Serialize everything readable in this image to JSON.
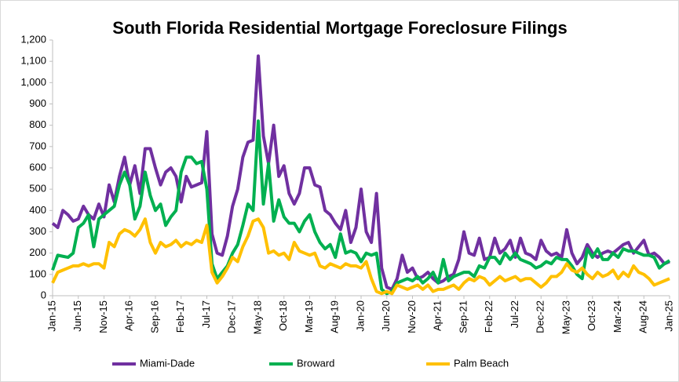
{
  "chart_data": {
    "type": "line",
    "title": "South Florida Residential Mortgage Foreclosure Filings",
    "categories": [
      "Jan-15",
      null,
      null,
      null,
      null,
      "Jun-15",
      null,
      null,
      null,
      null,
      "Nov-15",
      null,
      null,
      null,
      null,
      "Apr-16",
      null,
      null,
      null,
      null,
      "Sep-16",
      null,
      null,
      null,
      null,
      "Feb-17",
      null,
      null,
      null,
      null,
      "Jul-17",
      null,
      null,
      null,
      null,
      "Dec-17",
      null,
      null,
      null,
      null,
      "May-18",
      null,
      null,
      null,
      null,
      "Oct-18",
      null,
      null,
      null,
      null,
      "Mar-19",
      null,
      null,
      null,
      null,
      "Aug-19",
      null,
      null,
      null,
      null,
      "Jan-20",
      null,
      null,
      null,
      null,
      "Jun-20",
      null,
      null,
      null,
      null,
      "Nov-20",
      null,
      null,
      null,
      null,
      "Apr-21",
      null,
      null,
      null,
      null,
      "Sep-21",
      null,
      null,
      null,
      null,
      "Feb-22",
      null,
      null,
      null,
      null,
      "Jul-22",
      null,
      null,
      null,
      null,
      "Dec-22",
      null,
      null,
      null,
      null,
      "May-23",
      null,
      null,
      null,
      null,
      "Oct-23",
      null,
      null,
      null,
      null,
      "Mar-24",
      null,
      null,
      null,
      null,
      "Aug-24",
      null,
      null,
      null,
      null,
      "Jan-25"
    ],
    "series": [
      {
        "name": "Miami-Dade",
        "color": "#7030a0",
        "values": [
          340,
          320,
          400,
          380,
          350,
          360,
          420,
          380,
          360,
          430,
          370,
          520,
          440,
          560,
          650,
          520,
          610,
          480,
          690,
          690,
          600,
          520,
          580,
          600,
          560,
          440,
          560,
          510,
          520,
          530,
          770,
          290,
          200,
          190,
          280,
          420,
          500,
          650,
          720,
          730,
          1125,
          750,
          620,
          800,
          560,
          610,
          480,
          430,
          480,
          600,
          600,
          520,
          510,
          400,
          380,
          340,
          310,
          400,
          250,
          320,
          500,
          300,
          250,
          480,
          130,
          40,
          30,
          80,
          190,
          110,
          130,
          80,
          90,
          110,
          80,
          60,
          70,
          90,
          100,
          170,
          300,
          200,
          190,
          270,
          170,
          180,
          270,
          200,
          220,
          260,
          180,
          270,
          200,
          190,
          170,
          260,
          210,
          190,
          200,
          180,
          310,
          200,
          150,
          180,
          240,
          200,
          180,
          200,
          210,
          200,
          220,
          240,
          250,
          200,
          230,
          260,
          190,
          200,
          180,
          150,
          160
        ]
      },
      {
        "name": "Broward",
        "color": "#00b050",
        "values": [
          120,
          190,
          185,
          180,
          200,
          320,
          340,
          380,
          230,
          360,
          380,
          400,
          420,
          520,
          580,
          520,
          360,
          420,
          580,
          470,
          400,
          430,
          330,
          370,
          400,
          580,
          650,
          650,
          620,
          630,
          500,
          150,
          80,
          110,
          140,
          200,
          240,
          330,
          430,
          400,
          820,
          430,
          620,
          350,
          450,
          370,
          340,
          340,
          300,
          350,
          380,
          300,
          250,
          220,
          240,
          180,
          290,
          200,
          210,
          200,
          160,
          200,
          190,
          200,
          30,
          10,
          20,
          60,
          70,
          80,
          70,
          90,
          60,
          80,
          110,
          60,
          170,
          70,
          90,
          100,
          110,
          110,
          90,
          140,
          130,
          180,
          180,
          150,
          200,
          170,
          200,
          170,
          160,
          150,
          130,
          140,
          160,
          150,
          180,
          170,
          170,
          140,
          100,
          80,
          220,
          180,
          220,
          170,
          170,
          200,
          180,
          220,
          210,
          210,
          200,
          190,
          190,
          180,
          130,
          150,
          165
        ]
      },
      {
        "name": "Palm Beach",
        "color": "#ffc000",
        "values": [
          60,
          110,
          120,
          130,
          140,
          140,
          150,
          140,
          150,
          150,
          130,
          250,
          230,
          290,
          310,
          300,
          280,
          310,
          360,
          250,
          200,
          250,
          230,
          240,
          260,
          230,
          250,
          240,
          260,
          250,
          330,
          110,
          60,
          90,
          130,
          180,
          160,
          230,
          280,
          350,
          360,
          320,
          200,
          210,
          190,
          200,
          170,
          250,
          210,
          200,
          190,
          200,
          140,
          130,
          150,
          140,
          130,
          150,
          140,
          140,
          130,
          160,
          80,
          20,
          10,
          20,
          10,
          50,
          40,
          30,
          40,
          50,
          30,
          50,
          20,
          30,
          30,
          40,
          50,
          30,
          60,
          80,
          70,
          90,
          80,
          50,
          70,
          90,
          70,
          80,
          90,
          70,
          80,
          80,
          60,
          40,
          60,
          90,
          90,
          110,
          150,
          120,
          110,
          130,
          100,
          80,
          110,
          90,
          100,
          120,
          80,
          110,
          90,
          140,
          110,
          100,
          80,
          50,
          60,
          70,
          80
        ]
      }
    ],
    "ylim": [
      0,
      1200
    ],
    "yticks": [
      0,
      100,
      200,
      300,
      400,
      500,
      600,
      700,
      800,
      900,
      {
        "value": 1000,
        "label": "1,000"
      },
      {
        "value": 1100,
        "label": "1,100"
      },
      {
        "value": 1200,
        "label": "1,200"
      }
    ],
    "legend": "bottom"
  }
}
